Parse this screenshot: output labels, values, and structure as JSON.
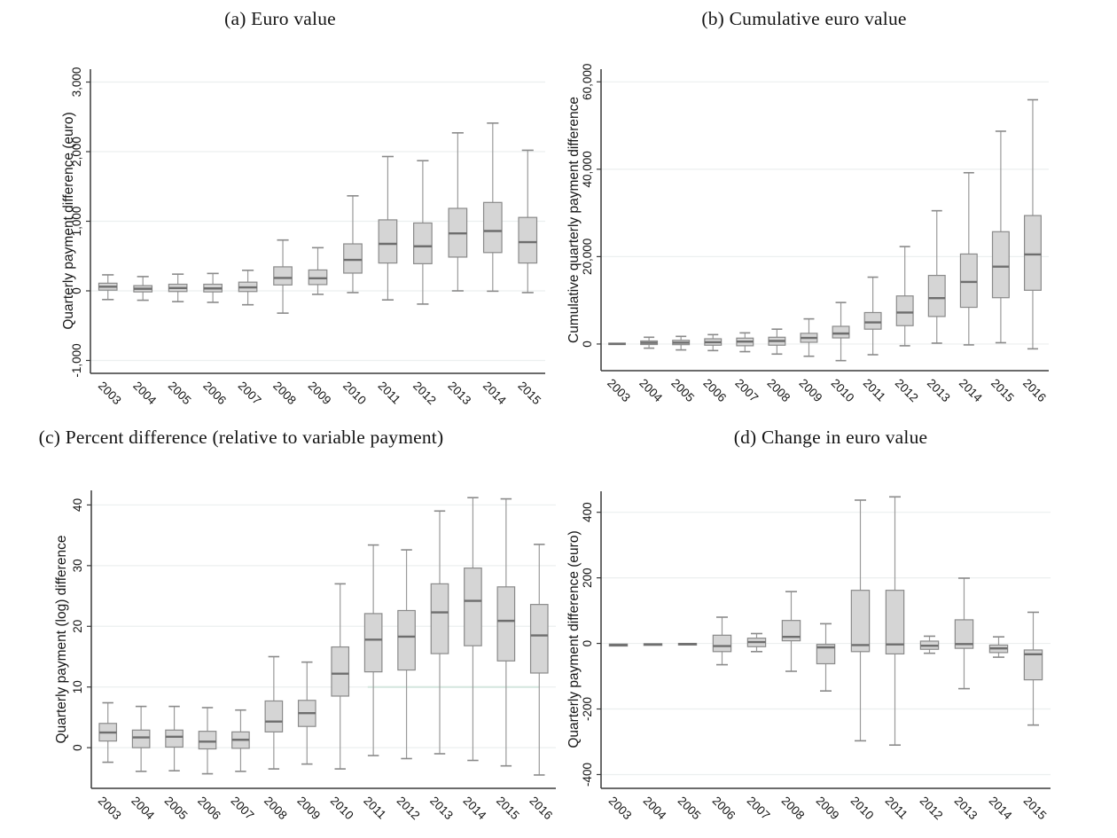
{
  "figure": {
    "background": "#ffffff"
  },
  "style": {
    "box_fill": "#d5d5d5",
    "box_border": "#8a8a8a",
    "median_color": "#6e6e6e",
    "whisker_color": "#9a9a9a",
    "cap_color": "#8a8a8a",
    "gridline_color": "#ecefef",
    "axis_color": "#3a3a3a",
    "text_color": "#161616",
    "ref_segment_teal": "#d4e6de"
  },
  "chart_data": [
    {
      "id": "a",
      "type": "box",
      "title": "(a) Euro value",
      "ylabel": "Quarterly payment difference (euro)",
      "xlabel": "",
      "grid": true,
      "ylim": [
        -1185,
        3185
      ],
      "yticks": [
        {
          "value": -1000,
          "label": "-1,000"
        },
        {
          "value": 0,
          "label": "0"
        },
        {
          "value": 1000,
          "label": "1,000"
        },
        {
          "value": 2000,
          "label": "2,000"
        },
        {
          "value": 3000,
          "label": "3,000"
        }
      ],
      "categories": [
        "2003",
        "2004",
        "2005",
        "2006",
        "2007",
        "2008",
        "2009",
        "2010",
        "2011",
        "2012",
        "2013",
        "2014",
        "2015"
      ],
      "boxes": [
        {
          "low": -125,
          "q1": 10,
          "median": 60,
          "q3": 110,
          "high": 230
        },
        {
          "low": -135,
          "q1": -15,
          "median": 30,
          "q3": 75,
          "high": 205
        },
        {
          "low": -155,
          "q1": -10,
          "median": 40,
          "q3": 95,
          "high": 240
        },
        {
          "low": -165,
          "q1": -15,
          "median": 35,
          "q3": 95,
          "high": 250
        },
        {
          "low": -200,
          "q1": -10,
          "median": 50,
          "q3": 125,
          "high": 295
        },
        {
          "low": -320,
          "q1": 85,
          "median": 185,
          "q3": 345,
          "high": 730
        },
        {
          "low": -50,
          "q1": 90,
          "median": 180,
          "q3": 300,
          "high": 620
        },
        {
          "low": -25,
          "q1": 255,
          "median": 445,
          "q3": 675,
          "high": 1365
        },
        {
          "low": -130,
          "q1": 400,
          "median": 675,
          "q3": 1020,
          "high": 1930
        },
        {
          "low": -190,
          "q1": 390,
          "median": 640,
          "q3": 975,
          "high": 1870
        },
        {
          "low": 0,
          "q1": 485,
          "median": 825,
          "q3": 1185,
          "high": 2270
        },
        {
          "low": -5,
          "q1": 550,
          "median": 860,
          "q3": 1270,
          "high": 2410
        },
        {
          "low": -25,
          "q1": 400,
          "median": 700,
          "q3": 1055,
          "high": 2020
        }
      ]
    },
    {
      "id": "b",
      "type": "box",
      "title": "(b) Cumulative euro value",
      "ylabel": "Cumulative quarterly payment difference",
      "xlabel": "",
      "grid": true,
      "ylim": [
        -6100,
        62900
      ],
      "yticks": [
        {
          "value": 0,
          "label": "0"
        },
        {
          "value": 20000,
          "label": "20,000"
        },
        {
          "value": 40000,
          "label": "40,000"
        },
        {
          "value": 60000,
          "label": "60,000"
        }
      ],
      "categories": [
        "2003",
        "2004",
        "2005",
        "2006",
        "2007",
        "2008",
        "2009",
        "2010",
        "2011",
        "2012",
        "2013",
        "2014",
        "2015",
        "2016"
      ],
      "boxes": [
        {
          "low": -300,
          "q1": -100,
          "median": 30,
          "q3": 200,
          "high": 400
        },
        {
          "low": -950,
          "q1": -120,
          "median": 270,
          "q3": 700,
          "high": 1550
        },
        {
          "low": -1350,
          "q1": -150,
          "median": 300,
          "q3": 850,
          "high": 1750
        },
        {
          "low": -1500,
          "q1": -270,
          "median": 400,
          "q3": 1200,
          "high": 2150
        },
        {
          "low": -1750,
          "q1": -400,
          "median": 550,
          "q3": 1350,
          "high": 2550
        },
        {
          "low": -2300,
          "q1": -270,
          "median": 700,
          "q3": 1550,
          "high": 3400
        },
        {
          "low": -2800,
          "q1": 400,
          "median": 1400,
          "q3": 2450,
          "high": 5750
        },
        {
          "low": -3800,
          "q1": 1400,
          "median": 2400,
          "q3": 4050,
          "high": 9500
        },
        {
          "low": -2450,
          "q1": 3400,
          "median": 4950,
          "q3": 7200,
          "high": 15300
        },
        {
          "low": -400,
          "q1": 4200,
          "median": 7200,
          "q3": 11000,
          "high": 22300
        },
        {
          "low": 200,
          "q1": 6300,
          "median": 10500,
          "q3": 15700,
          "high": 30500
        },
        {
          "low": -200,
          "q1": 8400,
          "median": 14200,
          "q3": 20600,
          "high": 39200
        },
        {
          "low": 300,
          "q1": 10600,
          "median": 17700,
          "q3": 25700,
          "high": 48700
        },
        {
          "low": -1100,
          "q1": 12300,
          "median": 20500,
          "q3": 29400,
          "high": 55900
        }
      ]
    },
    {
      "id": "c",
      "type": "box",
      "title": "(c) Percent difference (relative to variable payment)",
      "ylabel": "Quarterly payment (log) difference",
      "xlabel": "",
      "grid": true,
      "ylim": [
        -6.7,
        42.4
      ],
      "yticks": [
        {
          "value": 0,
          "label": "0"
        },
        {
          "value": 10,
          "label": "10"
        },
        {
          "value": 20,
          "label": "20"
        },
        {
          "value": 30,
          "label": "30"
        },
        {
          "value": 40,
          "label": "40"
        }
      ],
      "categories": [
        "2003",
        "2004",
        "2005",
        "2006",
        "2007",
        "2008",
        "2009",
        "2010",
        "2011",
        "2012",
        "2013",
        "2014",
        "2015",
        "2016"
      ],
      "boxes": [
        {
          "low": -2.4,
          "q1": 1.1,
          "median": 2.5,
          "q3": 4.0,
          "high": 7.4
        },
        {
          "low": -3.9,
          "q1": 0.0,
          "median": 1.7,
          "q3": 2.9,
          "high": 6.8
        },
        {
          "low": -3.8,
          "q1": 0.1,
          "median": 1.8,
          "q3": 2.9,
          "high": 6.8
        },
        {
          "low": -4.3,
          "q1": -0.2,
          "median": 1.0,
          "q3": 2.7,
          "high": 6.6
        },
        {
          "low": -3.9,
          "q1": -0.1,
          "median": 1.3,
          "q3": 2.6,
          "high": 6.2
        },
        {
          "low": -3.5,
          "q1": 2.6,
          "median": 4.3,
          "q3": 7.7,
          "high": 15.0
        },
        {
          "low": -2.7,
          "q1": 3.5,
          "median": 5.7,
          "q3": 7.8,
          "high": 14.1
        },
        {
          "low": -3.5,
          "q1": 8.5,
          "median": 12.2,
          "q3": 16.6,
          "high": 27.0
        },
        {
          "low": -1.3,
          "q1": 12.5,
          "median": 17.8,
          "q3": 22.1,
          "high": 33.4
        },
        {
          "low": -1.8,
          "q1": 12.8,
          "median": 18.3,
          "q3": 22.6,
          "high": 32.6
        },
        {
          "low": -1.0,
          "q1": 15.5,
          "median": 22.3,
          "q3": 27.0,
          "high": 39.0
        },
        {
          "low": -2.1,
          "q1": 16.8,
          "median": 24.2,
          "q3": 29.6,
          "high": 41.2
        },
        {
          "low": -3.0,
          "q1": 14.3,
          "median": 20.9,
          "q3": 26.5,
          "high": 41.0
        },
        {
          "low": -4.5,
          "q1": 12.3,
          "median": 18.5,
          "q3": 23.6,
          "high": 33.5
        }
      ]
    },
    {
      "id": "d",
      "type": "box",
      "title": "(d) Change in euro value",
      "ylabel": "Quarterly payment difference (euro)",
      "xlabel": "",
      "grid": true,
      "ylim": [
        -442,
        464
      ],
      "yticks": [
        {
          "value": -400,
          "label": "-400"
        },
        {
          "value": -200,
          "label": "-200"
        },
        {
          "value": 0,
          "label": "0"
        },
        {
          "value": 200,
          "label": "200"
        },
        {
          "value": 400,
          "label": "400"
        }
      ],
      "categories": [
        "2003",
        "2004",
        "2005",
        "2006",
        "2007",
        "2008",
        "2009",
        "2010",
        "2011",
        "2012",
        "2013",
        "2014",
        "2015"
      ],
      "boxes": [
        {
          "low": -8,
          "q1": -8,
          "median": -5,
          "q3": -2,
          "high": -2
        },
        {
          "low": -6,
          "q1": -6,
          "median": -3,
          "q3": -1,
          "high": -1
        },
        {
          "low": -5,
          "q1": -5,
          "median": -2,
          "q3": 0,
          "high": 0
        },
        {
          "low": -65,
          "q1": -25,
          "median": -8,
          "q3": 25,
          "high": 80
        },
        {
          "low": -25,
          "q1": -10,
          "median": 4,
          "q3": 16,
          "high": 30
        },
        {
          "low": -85,
          "q1": 8,
          "median": 20,
          "q3": 70,
          "high": 158
        },
        {
          "low": -145,
          "q1": -62,
          "median": -12,
          "q3": -3,
          "high": 60
        },
        {
          "low": -297,
          "q1": -25,
          "median": -5,
          "q3": 162,
          "high": 437
        },
        {
          "low": -310,
          "q1": -32,
          "median": -3,
          "q3": 162,
          "high": 447
        },
        {
          "low": -30,
          "q1": -18,
          "median": -7,
          "q3": 7,
          "high": 22
        },
        {
          "low": -138,
          "q1": -15,
          "median": -2,
          "q3": 72,
          "high": 199
        },
        {
          "low": -42,
          "q1": -28,
          "median": -15,
          "q3": -5,
          "high": 20
        },
        {
          "low": -249,
          "q1": -111,
          "median": -33,
          "q3": -20,
          "high": 95
        }
      ]
    }
  ]
}
